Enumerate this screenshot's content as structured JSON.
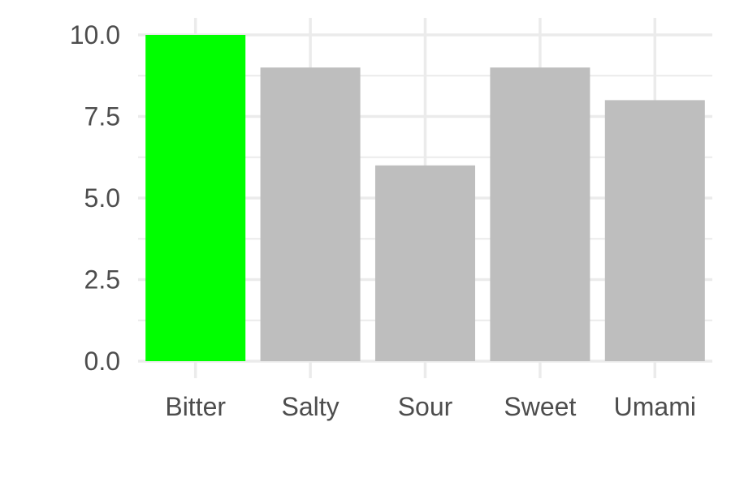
{
  "chart_data": {
    "type": "bar",
    "categories": [
      "Bitter",
      "Salty",
      "Sour",
      "Sweet",
      "Umami"
    ],
    "values": [
      10,
      9,
      6,
      9,
      8
    ],
    "highlight_category": "Bitter",
    "ylim": [
      0,
      10
    ],
    "yticks": [
      0,
      2.5,
      5,
      7.5,
      10
    ],
    "ytick_labels": [
      "0.0",
      "2.5",
      "5.0",
      "7.5",
      "10.0"
    ],
    "grid": true,
    "legend": "none",
    "colors": {
      "highlight": "#00ff00",
      "default": "#bebebe",
      "grid": "#ebebeb",
      "text": "#4d4d4d"
    }
  }
}
